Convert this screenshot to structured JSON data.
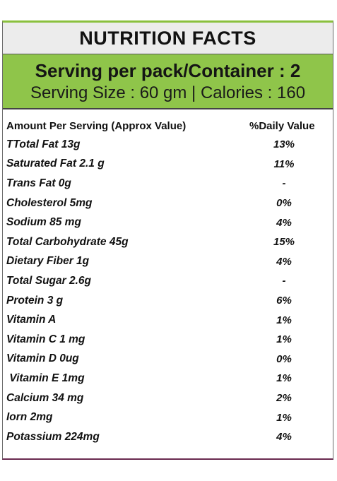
{
  "title": "NUTRITION FACTS",
  "serving": {
    "line1": "Serving per pack/Container : 2",
    "line2": "Serving Size : 60 gm | Calories : 160"
  },
  "table": {
    "header_left": "Amount Per Serving (Approx Value)",
    "header_right": "%Daily Value",
    "rows": [
      {
        "name": "TTotal Fat 13g",
        "value": "13%"
      },
      {
        "name": "Saturated Fat  2.1 g",
        "value": "11%"
      },
      {
        "name": "Trans Fat  0g",
        "value": "-"
      },
      {
        "name": "Cholesterol 5mg",
        "value": "0%"
      },
      {
        "name": "Sodium 85 mg",
        "value": "4%"
      },
      {
        "name": "Total Carbohydrate 45g",
        "value": "15%"
      },
      {
        "name": "Dietary Fiber 1g",
        "value": "4%"
      },
      {
        "name": "Total Sugar 2.6g",
        "value": "-"
      },
      {
        "name": "Protein 3 g",
        "value": "6%"
      },
      {
        "name": "Vitamin A",
        "value": "1%"
      },
      {
        "name": "Vitamin C 1 mg",
        "value": "1%"
      },
      {
        "name": "Vitamin  D 0ug",
        "value": "0%"
      },
      {
        "name": " Vitamin E 1mg",
        "value": "1%"
      },
      {
        "name": "Calcium 34 mg",
        "value": "2%"
      },
      {
        "name": "Iorn 2mg",
        "value": "1%"
      },
      {
        "name": "Potassium 224mg",
        "value": "4%"
      }
    ]
  },
  "colors": {
    "accent_green": "#8fc54a",
    "title_bg": "#ececec"
  }
}
